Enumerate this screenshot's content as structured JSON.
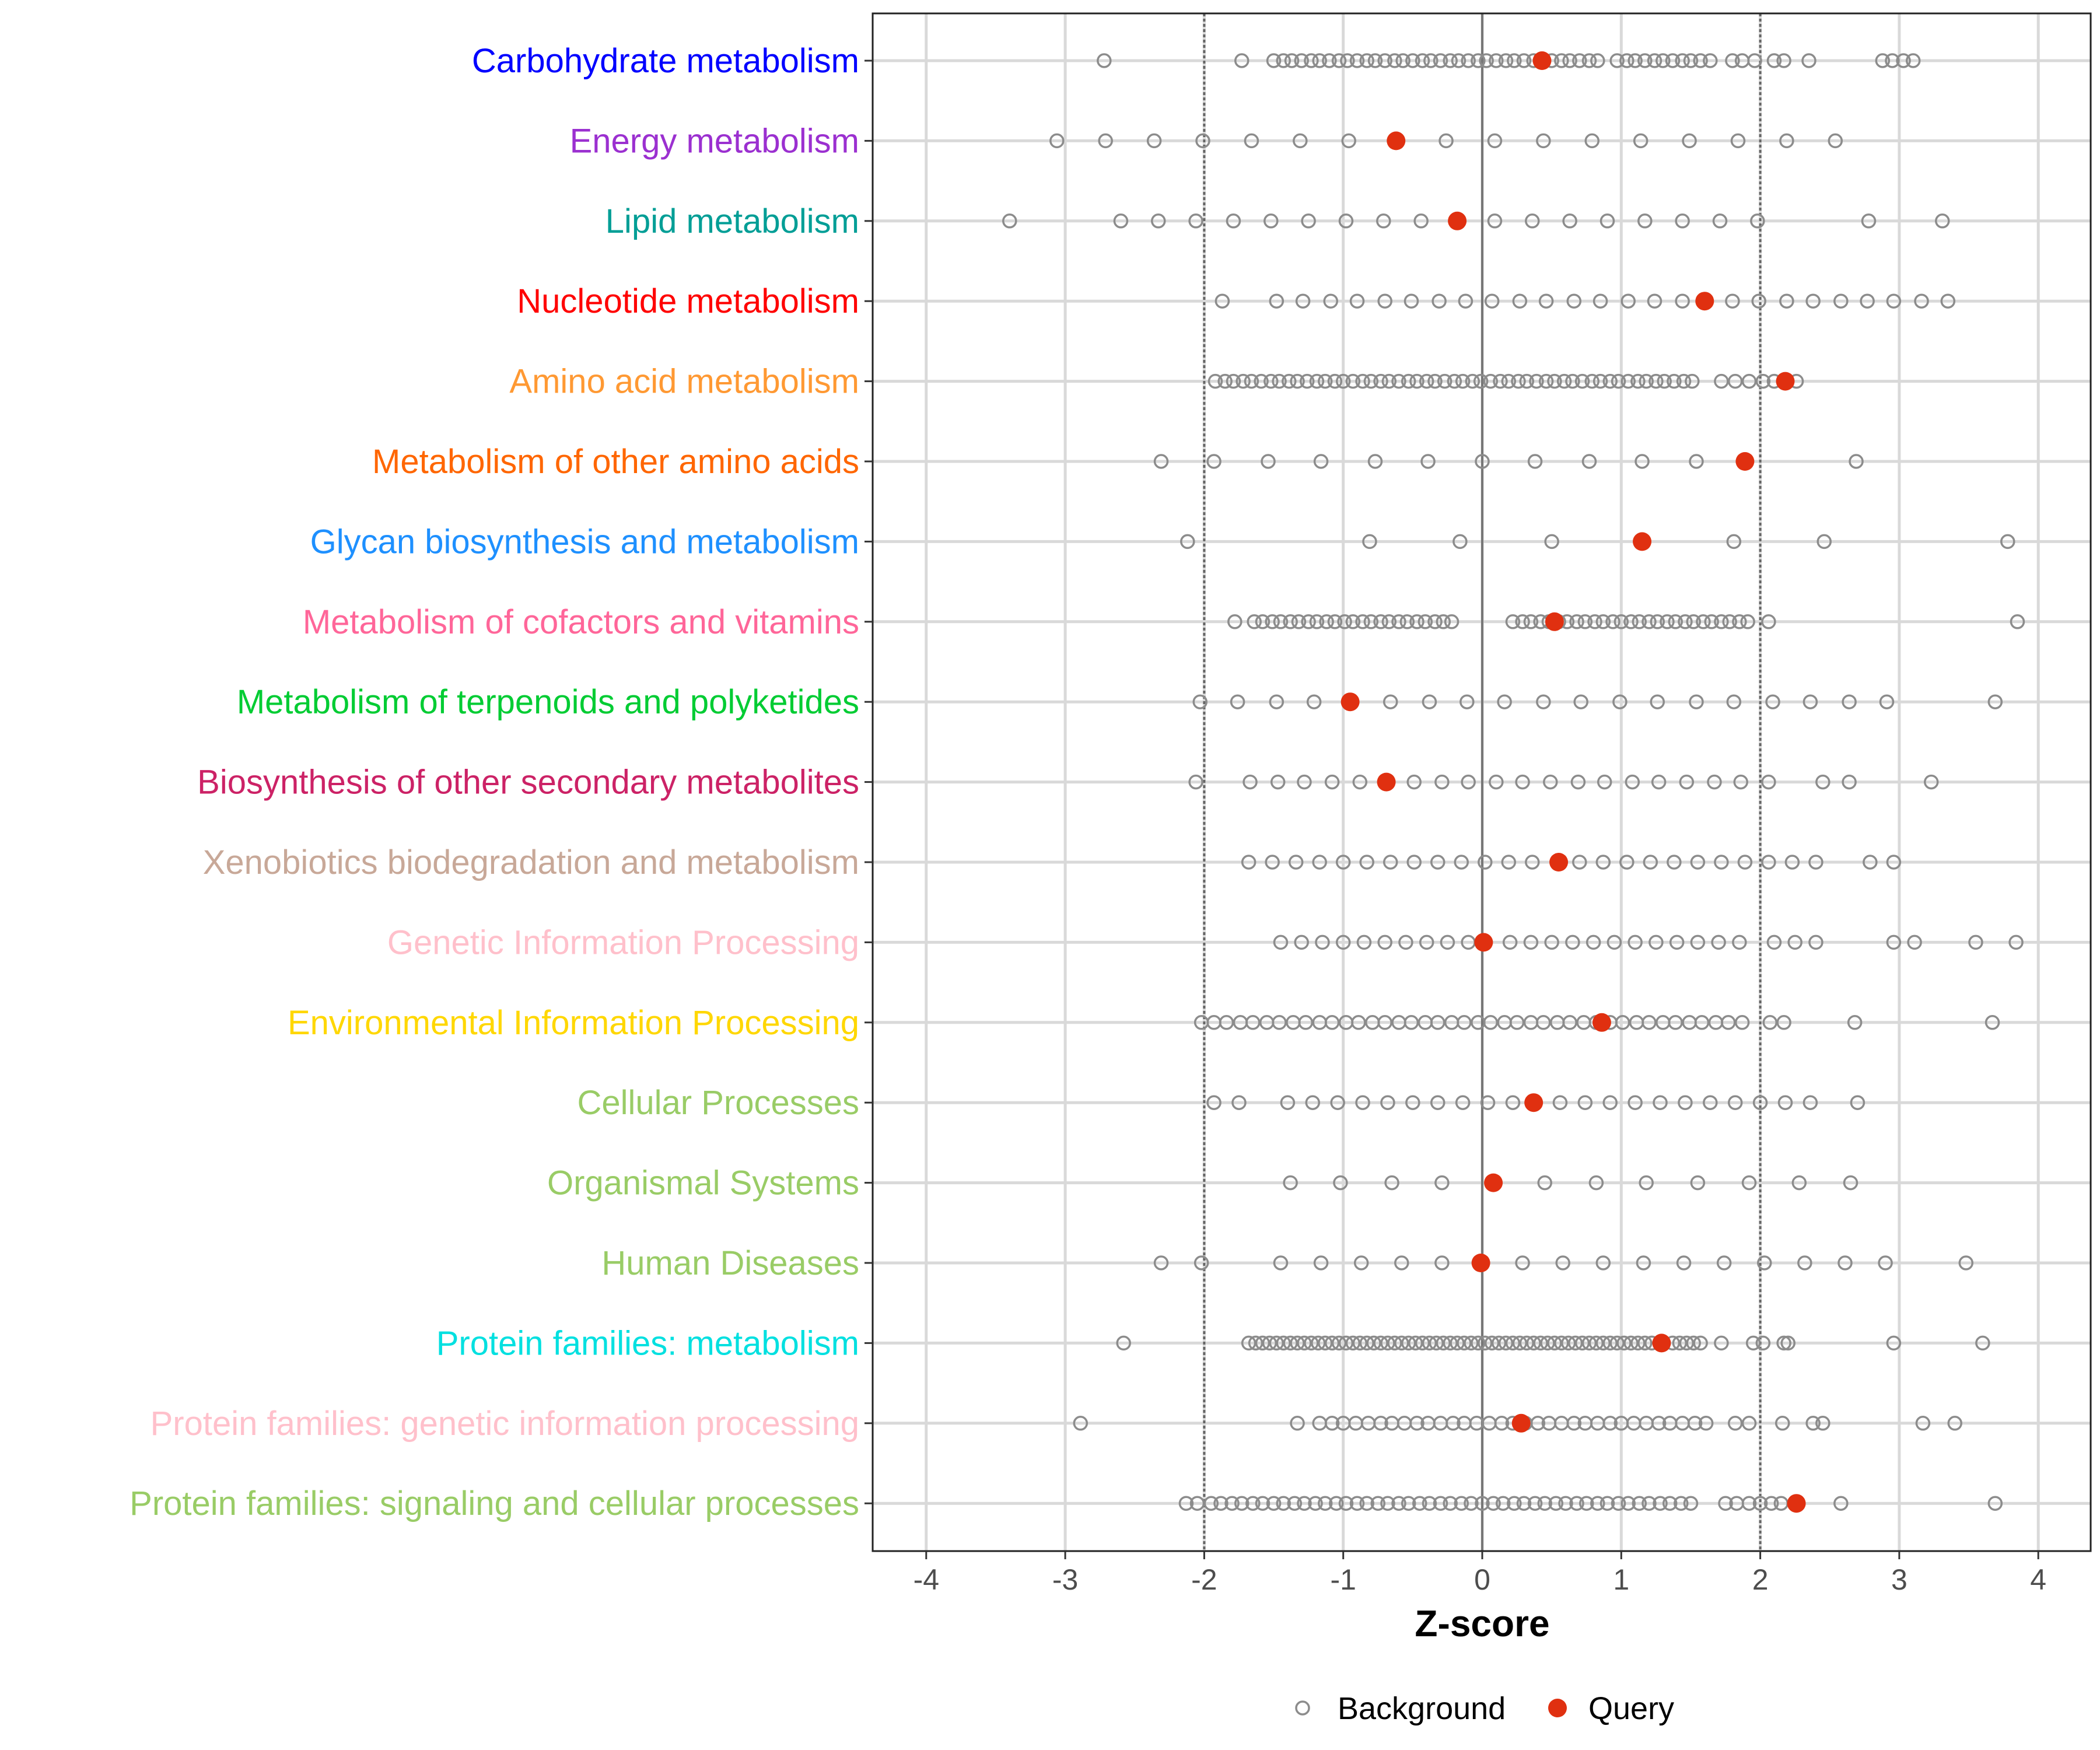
{
  "chart_data": {
    "type": "scatter",
    "title": "",
    "xlabel": "Z-score",
    "ylabel": "",
    "xlim": [
      -4.4,
      4.4
    ],
    "x_ticks": [
      -4,
      -3,
      -2,
      -1,
      0,
      1,
      2,
      3,
      4
    ],
    "x_tick_labels": [
      "-4",
      "-3",
      "-2",
      "-1",
      "0",
      "1",
      "2",
      "3",
      "4"
    ],
    "reference_lines": {
      "dashed": [
        -2,
        2
      ],
      "solid": [
        0
      ]
    },
    "grid": true,
    "legend": {
      "placement": "bottom",
      "entries": [
        {
          "label": "Background",
          "color": "#8c8c8c",
          "marker": "open-circle"
        },
        {
          "label": "Query",
          "color": "#E03010",
          "marker": "filled-circle"
        }
      ]
    },
    "categories": [
      {
        "label": "Carbohydrate metabolism",
        "color": "#0000FF",
        "query": 0.43,
        "background": [
          -2.72,
          -1.73,
          -1.5,
          -1.43,
          -1.37,
          -1.3,
          -1.23,
          -1.17,
          -1.1,
          -1.03,
          -0.97,
          -0.9,
          -0.83,
          -0.77,
          -0.7,
          -0.63,
          -0.57,
          -0.5,
          -0.43,
          -0.37,
          -0.3,
          -0.23,
          -0.17,
          -0.1,
          -0.03,
          0.03,
          0.1,
          0.17,
          0.23,
          0.3,
          0.37,
          0.5,
          0.57,
          0.63,
          0.7,
          0.77,
          0.83,
          0.97,
          1.04,
          1.1,
          1.17,
          1.24,
          1.3,
          1.37,
          1.44,
          1.5,
          1.57,
          1.64,
          1.8,
          1.87,
          1.96,
          2.1,
          2.17,
          2.35,
          2.88,
          2.95,
          3.03,
          3.1
        ]
      },
      {
        "label": "Energy metabolism",
        "color": "#9B30D0",
        "query": -0.62,
        "background": [
          -3.06,
          -2.71,
          -2.36,
          -2.01,
          -1.66,
          -1.31,
          -0.96,
          -0.26,
          0.09,
          0.44,
          0.79,
          1.14,
          1.49,
          1.84,
          2.19,
          2.54
        ]
      },
      {
        "label": "Lipid metabolism",
        "color": "#009E96",
        "query": -0.18,
        "background": [
          -3.4,
          -2.6,
          -2.33,
          -2.06,
          -1.79,
          -1.52,
          -1.25,
          -0.98,
          -0.71,
          -0.44,
          0.09,
          0.36,
          0.63,
          0.9,
          1.17,
          1.44,
          1.71,
          1.98,
          2.78,
          3.31
        ]
      },
      {
        "label": "Nucleotide metabolism",
        "color": "#FF0000",
        "query": 1.6,
        "background": [
          -1.87,
          -1.48,
          -1.29,
          -1.09,
          -0.9,
          -0.7,
          -0.51,
          -0.31,
          -0.12,
          0.07,
          0.27,
          0.46,
          0.66,
          0.85,
          1.05,
          1.24,
          1.44,
          1.8,
          1.99,
          2.19,
          2.38,
          2.58,
          2.77,
          2.96,
          3.16,
          3.35
        ]
      },
      {
        "label": "Amino acid metabolism",
        "color": "#FF9933",
        "query": 2.18,
        "background": [
          -1.92,
          -1.85,
          -1.79,
          -1.72,
          -1.66,
          -1.59,
          -1.52,
          -1.46,
          -1.39,
          -1.33,
          -1.26,
          -1.19,
          -1.13,
          -1.06,
          -1.0,
          -0.93,
          -0.86,
          -0.8,
          -0.73,
          -0.67,
          -0.6,
          -0.53,
          -0.47,
          -0.4,
          -0.34,
          -0.27,
          -0.2,
          -0.14,
          -0.07,
          -0.01,
          0.06,
          0.13,
          0.19,
          0.26,
          0.32,
          0.39,
          0.46,
          0.52,
          0.59,
          0.65,
          0.72,
          0.79,
          0.85,
          0.92,
          0.98,
          1.05,
          1.12,
          1.18,
          1.25,
          1.31,
          1.38,
          1.45,
          1.51,
          1.72,
          1.82,
          1.92,
          2.02,
          2.1,
          2.26
        ]
      },
      {
        "label": "Metabolism of other amino acids",
        "color": "#FF6600",
        "query": 1.89,
        "background": [
          -2.31,
          -1.93,
          -1.54,
          -1.16,
          -0.77,
          -0.39,
          0.0,
          0.38,
          0.77,
          1.15,
          1.54,
          2.69
        ]
      },
      {
        "label": "Glycan biosynthesis and metabolism",
        "color": "#1E90FF",
        "query": 1.15,
        "background": [
          -2.12,
          -0.81,
          -0.16,
          0.5,
          1.81,
          2.46,
          3.78
        ]
      },
      {
        "label": "Metabolism of cofactors and vitamins",
        "color": "#FF6699",
        "query": 0.52,
        "background": [
          -1.78,
          -1.64,
          -1.58,
          -1.51,
          -1.45,
          -1.38,
          -1.32,
          -1.25,
          -1.19,
          -1.12,
          -1.06,
          -0.99,
          -0.93,
          -0.86,
          -0.8,
          -0.73,
          -0.67,
          -0.6,
          -0.54,
          -0.47,
          -0.41,
          -0.34,
          -0.28,
          -0.22,
          0.22,
          0.29,
          0.35,
          0.42,
          0.48,
          0.55,
          0.61,
          0.68,
          0.74,
          0.81,
          0.87,
          0.94,
          1.0,
          1.07,
          1.13,
          1.2,
          1.26,
          1.33,
          1.39,
          1.46,
          1.52,
          1.59,
          1.65,
          1.72,
          1.78,
          1.85,
          1.91,
          2.06,
          3.85
        ]
      },
      {
        "label": "Metabolism of terpenoids and polyketides",
        "color": "#00CC33",
        "query": -0.95,
        "background": [
          -2.03,
          -1.76,
          -1.48,
          -1.21,
          -0.66,
          -0.38,
          -0.11,
          0.16,
          0.44,
          0.71,
          0.99,
          1.26,
          1.54,
          1.81,
          2.09,
          2.36,
          2.64,
          2.91,
          3.69
        ]
      },
      {
        "label": "Biosynthesis of other secondary metabolites",
        "color": "#CC2266",
        "query": -0.69,
        "background": [
          -2.06,
          -1.67,
          -1.47,
          -1.28,
          -1.08,
          -0.88,
          -0.49,
          -0.29,
          -0.1,
          0.1,
          0.29,
          0.49,
          0.69,
          0.88,
          1.08,
          1.27,
          1.47,
          1.67,
          1.86,
          2.06,
          2.45,
          2.64,
          3.23
        ]
      },
      {
        "label": "Xenobiotics biodegradation and metabolism",
        "color": "#C8A898",
        "query": 0.55,
        "background": [
          -1.68,
          -1.51,
          -1.34,
          -1.17,
          -1.0,
          -0.83,
          -0.66,
          -0.49,
          -0.32,
          -0.15,
          0.02,
          0.19,
          0.36,
          0.7,
          0.87,
          1.04,
          1.21,
          1.38,
          1.55,
          1.72,
          1.89,
          2.06,
          2.23,
          2.4,
          2.79,
          2.96
        ]
      },
      {
        "label": "Genetic Information Processing",
        "color": "#FFC0CB",
        "query": 0.01,
        "background": [
          -1.45,
          -1.3,
          -1.15,
          -1.0,
          -0.85,
          -0.7,
          -0.55,
          -0.4,
          -0.25,
          -0.1,
          0.2,
          0.35,
          0.5,
          0.65,
          0.8,
          0.95,
          1.1,
          1.25,
          1.4,
          1.55,
          1.7,
          1.85,
          2.1,
          2.25,
          2.4,
          2.96,
          3.11,
          3.55,
          3.84
        ]
      },
      {
        "label": "Environmental Information Processing",
        "color": "#FFD700",
        "query": 0.86,
        "background": [
          -2.02,
          -1.93,
          -1.84,
          -1.74,
          -1.65,
          -1.55,
          -1.46,
          -1.36,
          -1.27,
          -1.17,
          -1.08,
          -0.98,
          -0.89,
          -0.79,
          -0.7,
          -0.6,
          -0.51,
          -0.41,
          -0.32,
          -0.22,
          -0.13,
          -0.03,
          0.06,
          0.16,
          0.25,
          0.35,
          0.44,
          0.54,
          0.63,
          0.73,
          0.82,
          0.92,
          1.01,
          1.11,
          1.2,
          1.3,
          1.39,
          1.49,
          1.58,
          1.68,
          1.77,
          1.87,
          2.07,
          2.17,
          2.68,
          3.67
        ]
      },
      {
        "label": "Cellular Processes",
        "color": "#99CC66",
        "query": 0.37,
        "background": [
          -1.93,
          -1.75,
          -1.4,
          -1.22,
          -1.04,
          -0.86,
          -0.68,
          -0.5,
          -0.32,
          -0.14,
          0.04,
          0.22,
          0.56,
          0.74,
          0.92,
          1.1,
          1.28,
          1.46,
          1.64,
          1.82,
          2.0,
          2.18,
          2.36,
          2.7
        ]
      },
      {
        "label": "Organismal Systems",
        "color": "#99CC66",
        "query": 0.08,
        "background": [
          -1.38,
          -1.02,
          -0.65,
          -0.29,
          0.45,
          0.82,
          1.18,
          1.55,
          1.92,
          2.28,
          2.65
        ]
      },
      {
        "label": "Human Diseases",
        "color": "#99CC66",
        "query": -0.01,
        "background": [
          -2.31,
          -2.02,
          -1.45,
          -1.16,
          -0.87,
          -0.58,
          -0.29,
          0.29,
          0.58,
          0.87,
          1.16,
          1.45,
          1.74,
          2.03,
          2.32,
          2.61,
          2.9,
          3.48
        ]
      },
      {
        "label": "Protein families: metabolism",
        "color": "#00E0E0",
        "query": 1.29,
        "background": [
          -2.58,
          -1.68,
          -1.63,
          -1.58,
          -1.53,
          -1.48,
          -1.43,
          -1.38,
          -1.33,
          -1.28,
          -1.23,
          -1.18,
          -1.13,
          -1.08,
          -1.03,
          -0.98,
          -0.93,
          -0.88,
          -0.83,
          -0.78,
          -0.73,
          -0.68,
          -0.63,
          -0.58,
          -0.53,
          -0.48,
          -0.43,
          -0.38,
          -0.33,
          -0.28,
          -0.23,
          -0.18,
          -0.13,
          -0.08,
          -0.03,
          0.02,
          0.07,
          0.12,
          0.17,
          0.22,
          0.27,
          0.32,
          0.37,
          0.42,
          0.47,
          0.52,
          0.57,
          0.62,
          0.67,
          0.72,
          0.77,
          0.82,
          0.87,
          0.92,
          0.97,
          1.02,
          1.07,
          1.12,
          1.17,
          1.22,
          1.37,
          1.42,
          1.47,
          1.52,
          1.57,
          1.72,
          1.95,
          2.02,
          2.17,
          2.2,
          2.96,
          3.6
        ]
      },
      {
        "label": "Protein families: genetic information processing",
        "color": "#FFC0CB",
        "query": 0.28,
        "background": [
          -2.89,
          -1.33,
          -1.17,
          -1.08,
          -1.0,
          -0.91,
          -0.82,
          -0.73,
          -0.65,
          -0.56,
          -0.47,
          -0.39,
          -0.3,
          -0.21,
          -0.13,
          -0.04,
          0.05,
          0.14,
          0.22,
          0.31,
          0.4,
          0.48,
          0.57,
          0.66,
          0.74,
          0.83,
          0.92,
          1.0,
          1.09,
          1.18,
          1.27,
          1.35,
          1.44,
          1.53,
          1.61,
          1.82,
          1.92,
          2.16,
          2.38,
          2.45,
          3.17,
          3.4
        ]
      },
      {
        "label": "Protein families: signaling and cellular processes",
        "color": "#99CC66",
        "query": 2.26,
        "background": [
          -2.13,
          -2.05,
          -1.95,
          -1.88,
          -1.8,
          -1.73,
          -1.65,
          -1.58,
          -1.5,
          -1.43,
          -1.35,
          -1.28,
          -1.2,
          -1.13,
          -1.05,
          -0.98,
          -0.9,
          -0.83,
          -0.75,
          -0.68,
          -0.6,
          -0.53,
          -0.45,
          -0.38,
          -0.3,
          -0.23,
          -0.15,
          -0.08,
          0.0,
          0.08,
          0.15,
          0.23,
          0.3,
          0.38,
          0.45,
          0.53,
          0.6,
          0.68,
          0.75,
          0.83,
          0.9,
          0.98,
          1.05,
          1.13,
          1.2,
          1.28,
          1.35,
          1.43,
          1.5,
          1.75,
          1.83,
          1.92,
          2.0,
          2.08,
          2.15,
          2.58,
          3.69
        ]
      }
    ]
  }
}
